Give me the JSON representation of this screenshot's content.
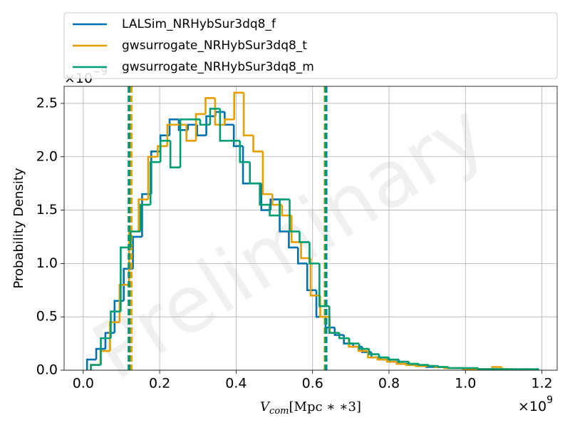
{
  "chart_data": {
    "type": "histogram",
    "watermark": "Preliminary",
    "ylabel": "Probability Density",
    "xlabel": {
      "base": "V",
      "subscript": "com",
      "rest": "[Mpc ∗ ∗3]"
    },
    "x_offset": {
      "base": "×10",
      "exponent": "9"
    },
    "y_offset": {
      "base": "×10",
      "exponent": "−9"
    },
    "xlim": [
      -0.05,
      1.24
    ],
    "ylim": [
      0,
      2.66
    ],
    "xticks": [
      {
        "value": 0,
        "label": "0.0"
      },
      0.2,
      0.4,
      0.6,
      0.8,
      {
        "value": 1,
        "label": "1.0"
      },
      1.2
    ],
    "yticks": [
      {
        "value": 0,
        "label": "0.0"
      },
      0.5,
      {
        "value": 1,
        "label": "1.0"
      },
      1.5,
      {
        "value": 2,
        "label": "2.0"
      },
      2.5
    ],
    "grid": true,
    "legend": "top-outside",
    "series": [
      {
        "name": "LALSim_NRHybSur3dq8_f",
        "color": "#0072b2",
        "bounds": [
          0.122,
          0.636
        ],
        "bins": [
          0.01,
          0.034,
          0.058,
          0.082,
          0.106,
          0.13,
          0.154,
          0.178,
          0.202,
          0.226,
          0.25,
          0.274,
          0.298,
          0.322,
          0.346,
          0.37,
          0.394,
          0.418,
          0.442,
          0.466,
          0.49,
          0.514,
          0.538,
          0.562,
          0.586,
          0.61,
          0.634,
          0.658,
          0.682,
          0.706,
          0.73,
          0.754,
          0.778,
          0.802,
          0.826,
          0.85,
          0.874,
          0.898,
          0.922,
          0.946,
          0.97,
          0.994,
          1.018,
          1.042,
          1.066,
          1.09
        ],
        "values": [
          0.1,
          0.2,
          0.35,
          0.65,
          0.95,
          1.25,
          1.65,
          2.05,
          2.2,
          2.35,
          2.25,
          2.3,
          2.2,
          2.38,
          2.42,
          2.3,
          2.1,
          1.75,
          1.75,
          1.5,
          1.6,
          1.3,
          1.15,
          1.0,
          0.75,
          0.5,
          0.4,
          0.33,
          0.25,
          0.22,
          0.17,
          0.12,
          0.1,
          0.08,
          0.06,
          0.05,
          0.04,
          0.03,
          0.03,
          0.02,
          0.02,
          0.01,
          0.01,
          0.01,
          0.01
        ]
      },
      {
        "name": "gwsurrogate_NRHybSur3dq8_t",
        "color": "#e69f00",
        "bounds": [
          0.126,
          0.632
        ],
        "bins": [
          0.02,
          0.045,
          0.07,
          0.095,
          0.12,
          0.145,
          0.17,
          0.195,
          0.22,
          0.245,
          0.27,
          0.295,
          0.32,
          0.345,
          0.37,
          0.395,
          0.42,
          0.445,
          0.47,
          0.495,
          0.52,
          0.545,
          0.57,
          0.595,
          0.62,
          0.645,
          0.67,
          0.695,
          0.72,
          0.745,
          0.77,
          0.795,
          0.82,
          0.845,
          0.87,
          0.895,
          0.92,
          0.945,
          0.97,
          0.995,
          1.02,
          1.045,
          1.07,
          1.095,
          1.12
        ],
        "values": [
          0.05,
          0.18,
          0.45,
          0.8,
          1.3,
          1.6,
          2.0,
          2.1,
          2.3,
          2.3,
          2.15,
          2.4,
          2.55,
          2.3,
          2.35,
          2.6,
          2.2,
          2.05,
          1.65,
          1.55,
          1.45,
          1.2,
          1.05,
          0.7,
          0.5,
          0.35,
          0.3,
          0.22,
          0.18,
          0.12,
          0.1,
          0.08,
          0.06,
          0.05,
          0.04,
          0.04,
          0.03,
          0.02,
          0.02,
          0.01,
          0.01,
          0.01,
          0.03,
          0.01
        ]
      },
      {
        "name": "gwsurrogate_NRHybSur3dq8_m",
        "color": "#009e73",
        "bounds": [
          0.119,
          0.634
        ],
        "bins": [
          0.02,
          0.046,
          0.072,
          0.098,
          0.124,
          0.15,
          0.176,
          0.202,
          0.228,
          0.254,
          0.28,
          0.306,
          0.332,
          0.358,
          0.384,
          0.41,
          0.436,
          0.462,
          0.488,
          0.514,
          0.54,
          0.566,
          0.592,
          0.618,
          0.644,
          0.67,
          0.696,
          0.722,
          0.748,
          0.774,
          0.8,
          0.826,
          0.852,
          0.878,
          0.904,
          0.93,
          0.956,
          0.982,
          1.008,
          1.034,
          1.06,
          1.086,
          1.112,
          1.138,
          1.164,
          1.19
        ],
        "values": [
          0.05,
          0.3,
          0.55,
          1.15,
          1.3,
          1.55,
          1.95,
          2.15,
          1.9,
          2.35,
          2.35,
          2.3,
          2.45,
          2.15,
          2.15,
          1.95,
          1.75,
          1.55,
          1.45,
          1.6,
          1.3,
          1.2,
          1.0,
          0.6,
          0.35,
          0.3,
          0.25,
          0.2,
          0.15,
          0.12,
          0.1,
          0.08,
          0.06,
          0.05,
          0.04,
          0.03,
          0.02,
          0.02,
          0.02,
          0.01,
          0.01,
          0.01,
          0.01,
          0.01,
          0.01
        ]
      }
    ]
  }
}
